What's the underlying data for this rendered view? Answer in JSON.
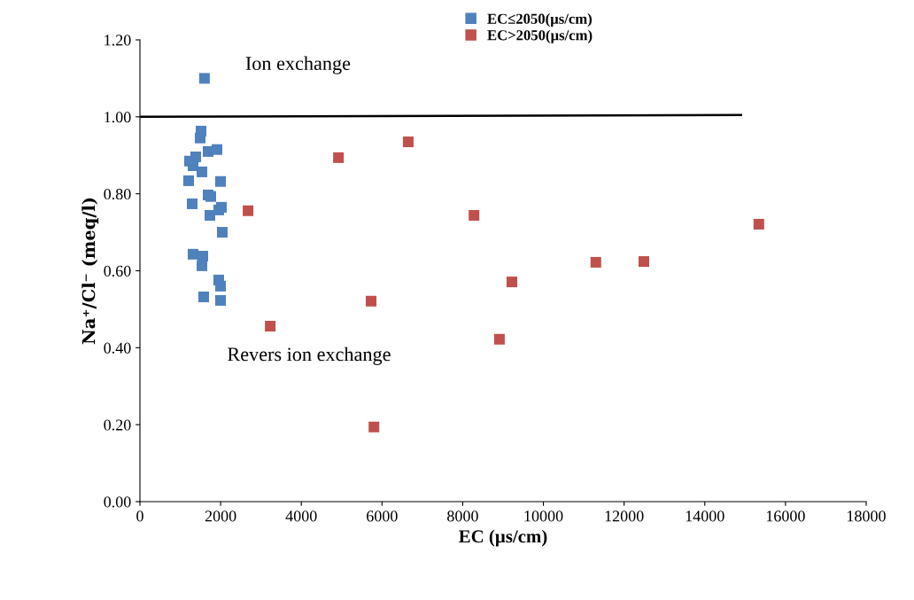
{
  "chart_data": {
    "type": "scatter",
    "xlabel": "EC (µs/cm)",
    "ylabel": "Na⁺/Cl⁻ (meq/l)",
    "grid": false,
    "legend": "top",
    "xlim": [
      0,
      18000
    ],
    "ylim": [
      0,
      1.2
    ],
    "xticks": [
      0,
      2000,
      4000,
      6000,
      8000,
      10000,
      12000,
      14000,
      16000,
      18000
    ],
    "yticks": [
      {
        "value": 0,
        "label": "0.00"
      },
      {
        "value": 0.2,
        "label": "0.20"
      },
      {
        "value": 0.4,
        "label": "0.40"
      },
      {
        "value": 0.6,
        "label": "0.60"
      },
      {
        "value": 0.8,
        "label": "0.80"
      },
      {
        "value": 1.0,
        "label": "1.00"
      },
      {
        "value": 1.2,
        "label": "1.20"
      }
    ],
    "annotations": [
      "Ion exchange",
      "Revers ion exchange"
    ],
    "series": [
      {
        "name": "EC≤2050(µs/cm)",
        "color": "#4f81bd",
        "marker": "square",
        "x": [
          1600,
          1515,
          1493,
          1690,
          1910,
          1229,
          1383,
          1317,
          1537,
          1207,
          1997,
          1690,
          1756,
          1295,
          2019,
          1954,
          1734,
          2041,
          1317,
          1558,
          1537,
          1954,
          1997,
          1580,
          1997
        ],
        "values": [
          1.1,
          0.963,
          0.945,
          0.91,
          0.915,
          0.885,
          0.896,
          0.873,
          0.857,
          0.834,
          0.832,
          0.797,
          0.793,
          0.774,
          0.765,
          0.758,
          0.744,
          0.7,
          0.643,
          0.638,
          0.613,
          0.576,
          0.56,
          0.532,
          0.523
        ]
      },
      {
        "name": "EC>2050(µs/cm)",
        "color": "#c0504d",
        "marker": "square",
        "x": [
          2680,
          3230,
          4920,
          6650,
          5730,
          5800,
          8280,
          8910,
          9220,
          11300,
          12490,
          15340
        ],
        "values": [
          0.756,
          0.456,
          0.894,
          0.935,
          0.521,
          0.194,
          0.744,
          0.422,
          0.571,
          0.622,
          0.624,
          0.721
        ]
      },
      {
        "type": "line",
        "color": "#000000",
        "marker": "none",
        "x": [
          0,
          14900
        ],
        "values": [
          1.0,
          1.005
        ]
      }
    ]
  }
}
